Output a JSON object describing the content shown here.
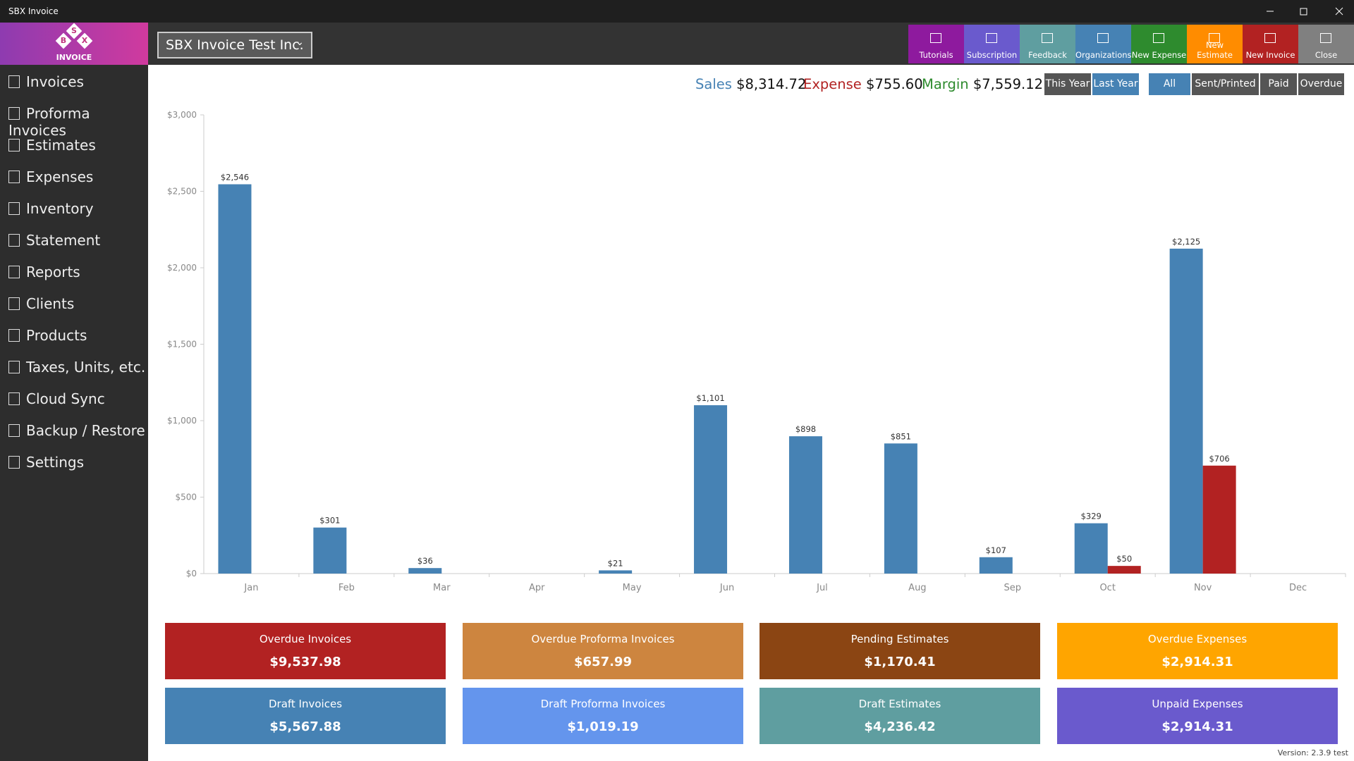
{
  "window": {
    "title": "SBX Invoice"
  },
  "logo": {
    "letters": [
      "S",
      "B",
      "X"
    ],
    "text": "INVOICE"
  },
  "sidebar": {
    "items": [
      "Invoices",
      "Proforma Invoices",
      "Estimates",
      "Expenses",
      "Inventory",
      "Statement",
      "Reports",
      "Clients",
      "Products",
      "Taxes, Units, etc.",
      "Cloud Sync",
      "Backup / Restore",
      "Settings"
    ]
  },
  "organization": "SBX Invoice Test Inc.",
  "toolbar": {
    "buttons": [
      {
        "label": "Tutorials",
        "color": "#8e1a9e"
      },
      {
        "label": "Subscription",
        "color": "#6a5acd"
      },
      {
        "label": "Feedback",
        "color": "#5f9ea0"
      },
      {
        "label": "Organizations",
        "color": "#4682b4"
      },
      {
        "label": "New Expense",
        "color": "#2e8b2e"
      },
      {
        "label": "New Estimate",
        "color": "#ff8c00"
      },
      {
        "label": "New Invoice",
        "color": "#b22222"
      },
      {
        "label": "Close",
        "color": "#808080"
      }
    ]
  },
  "summary": [
    {
      "label": "Sales",
      "value": "$8,314.72",
      "color": "#4682b4"
    },
    {
      "label": "Expense",
      "value": "$755.60",
      "color": "#b22222"
    },
    {
      "label": "Margin",
      "value": "$7,559.12",
      "color": "#2e8b2e"
    }
  ],
  "period_filters": [
    {
      "label": "This Year",
      "color": "#555555"
    },
    {
      "label": "Last Year",
      "color": "#4682b4"
    }
  ],
  "status_filters": [
    {
      "label": "All",
      "color": "#4682b4"
    },
    {
      "label": "Sent/Printed",
      "color": "#555555"
    },
    {
      "label": "Paid",
      "color": "#555555"
    },
    {
      "label": "Overdue",
      "color": "#555555"
    }
  ],
  "chart_data": {
    "type": "bar",
    "categories": [
      "Jan",
      "Feb",
      "Mar",
      "Apr",
      "May",
      "Jun",
      "Jul",
      "Aug",
      "Sep",
      "Oct",
      "Nov",
      "Dec"
    ],
    "series": [
      {
        "color": "#4682b4",
        "values": [
          2546,
          301,
          36,
          null,
          21,
          1101,
          898,
          851,
          107,
          329,
          2125,
          null
        ],
        "value_labels": [
          "$2,546",
          "$301",
          "$36",
          null,
          "$21",
          "$1,101",
          "$898",
          "$851",
          "$107",
          "$329",
          "$2,125",
          null
        ]
      },
      {
        "color": "#b22222",
        "values": [
          null,
          null,
          null,
          null,
          null,
          null,
          null,
          null,
          null,
          50,
          706,
          null
        ],
        "value_labels": [
          null,
          null,
          null,
          null,
          null,
          null,
          null,
          null,
          null,
          "$50",
          "$706",
          null
        ]
      }
    ],
    "ylim": [
      0,
      3000
    ],
    "yticks": [
      {
        "value": 0,
        "label": "$0"
      },
      {
        "value": 500,
        "label": "$500"
      },
      {
        "value": 1000,
        "label": "$1,000"
      },
      {
        "value": 1500,
        "label": "$1,500"
      },
      {
        "value": 2000,
        "label": "$2,000"
      },
      {
        "value": 2500,
        "label": "$2,500"
      },
      {
        "value": 3000,
        "label": "$3,000"
      }
    ]
  },
  "tiles": [
    {
      "label": "Overdue Invoices",
      "value": "$9,537.98",
      "color": "#b22222"
    },
    {
      "label": "Overdue Proforma Invoices",
      "value": "$657.99",
      "color": "#cd853f"
    },
    {
      "label": "Pending Estimates",
      "value": "$1,170.41",
      "color": "#8b4513"
    },
    {
      "label": "Overdue Expenses",
      "value": "$2,914.31",
      "color": "#ffa500"
    },
    {
      "label": "Draft Invoices",
      "value": "$5,567.88",
      "color": "#4682b4"
    },
    {
      "label": "Draft Proforma Invoices",
      "value": "$1,019.19",
      "color": "#6495ed"
    },
    {
      "label": "Draft Estimates",
      "value": "$4,236.42",
      "color": "#5f9ea0"
    },
    {
      "label": "Unpaid Expenses",
      "value": "$2,914.31",
      "color": "#6a5acd"
    }
  ],
  "version": "Version: 2.3.9 test"
}
